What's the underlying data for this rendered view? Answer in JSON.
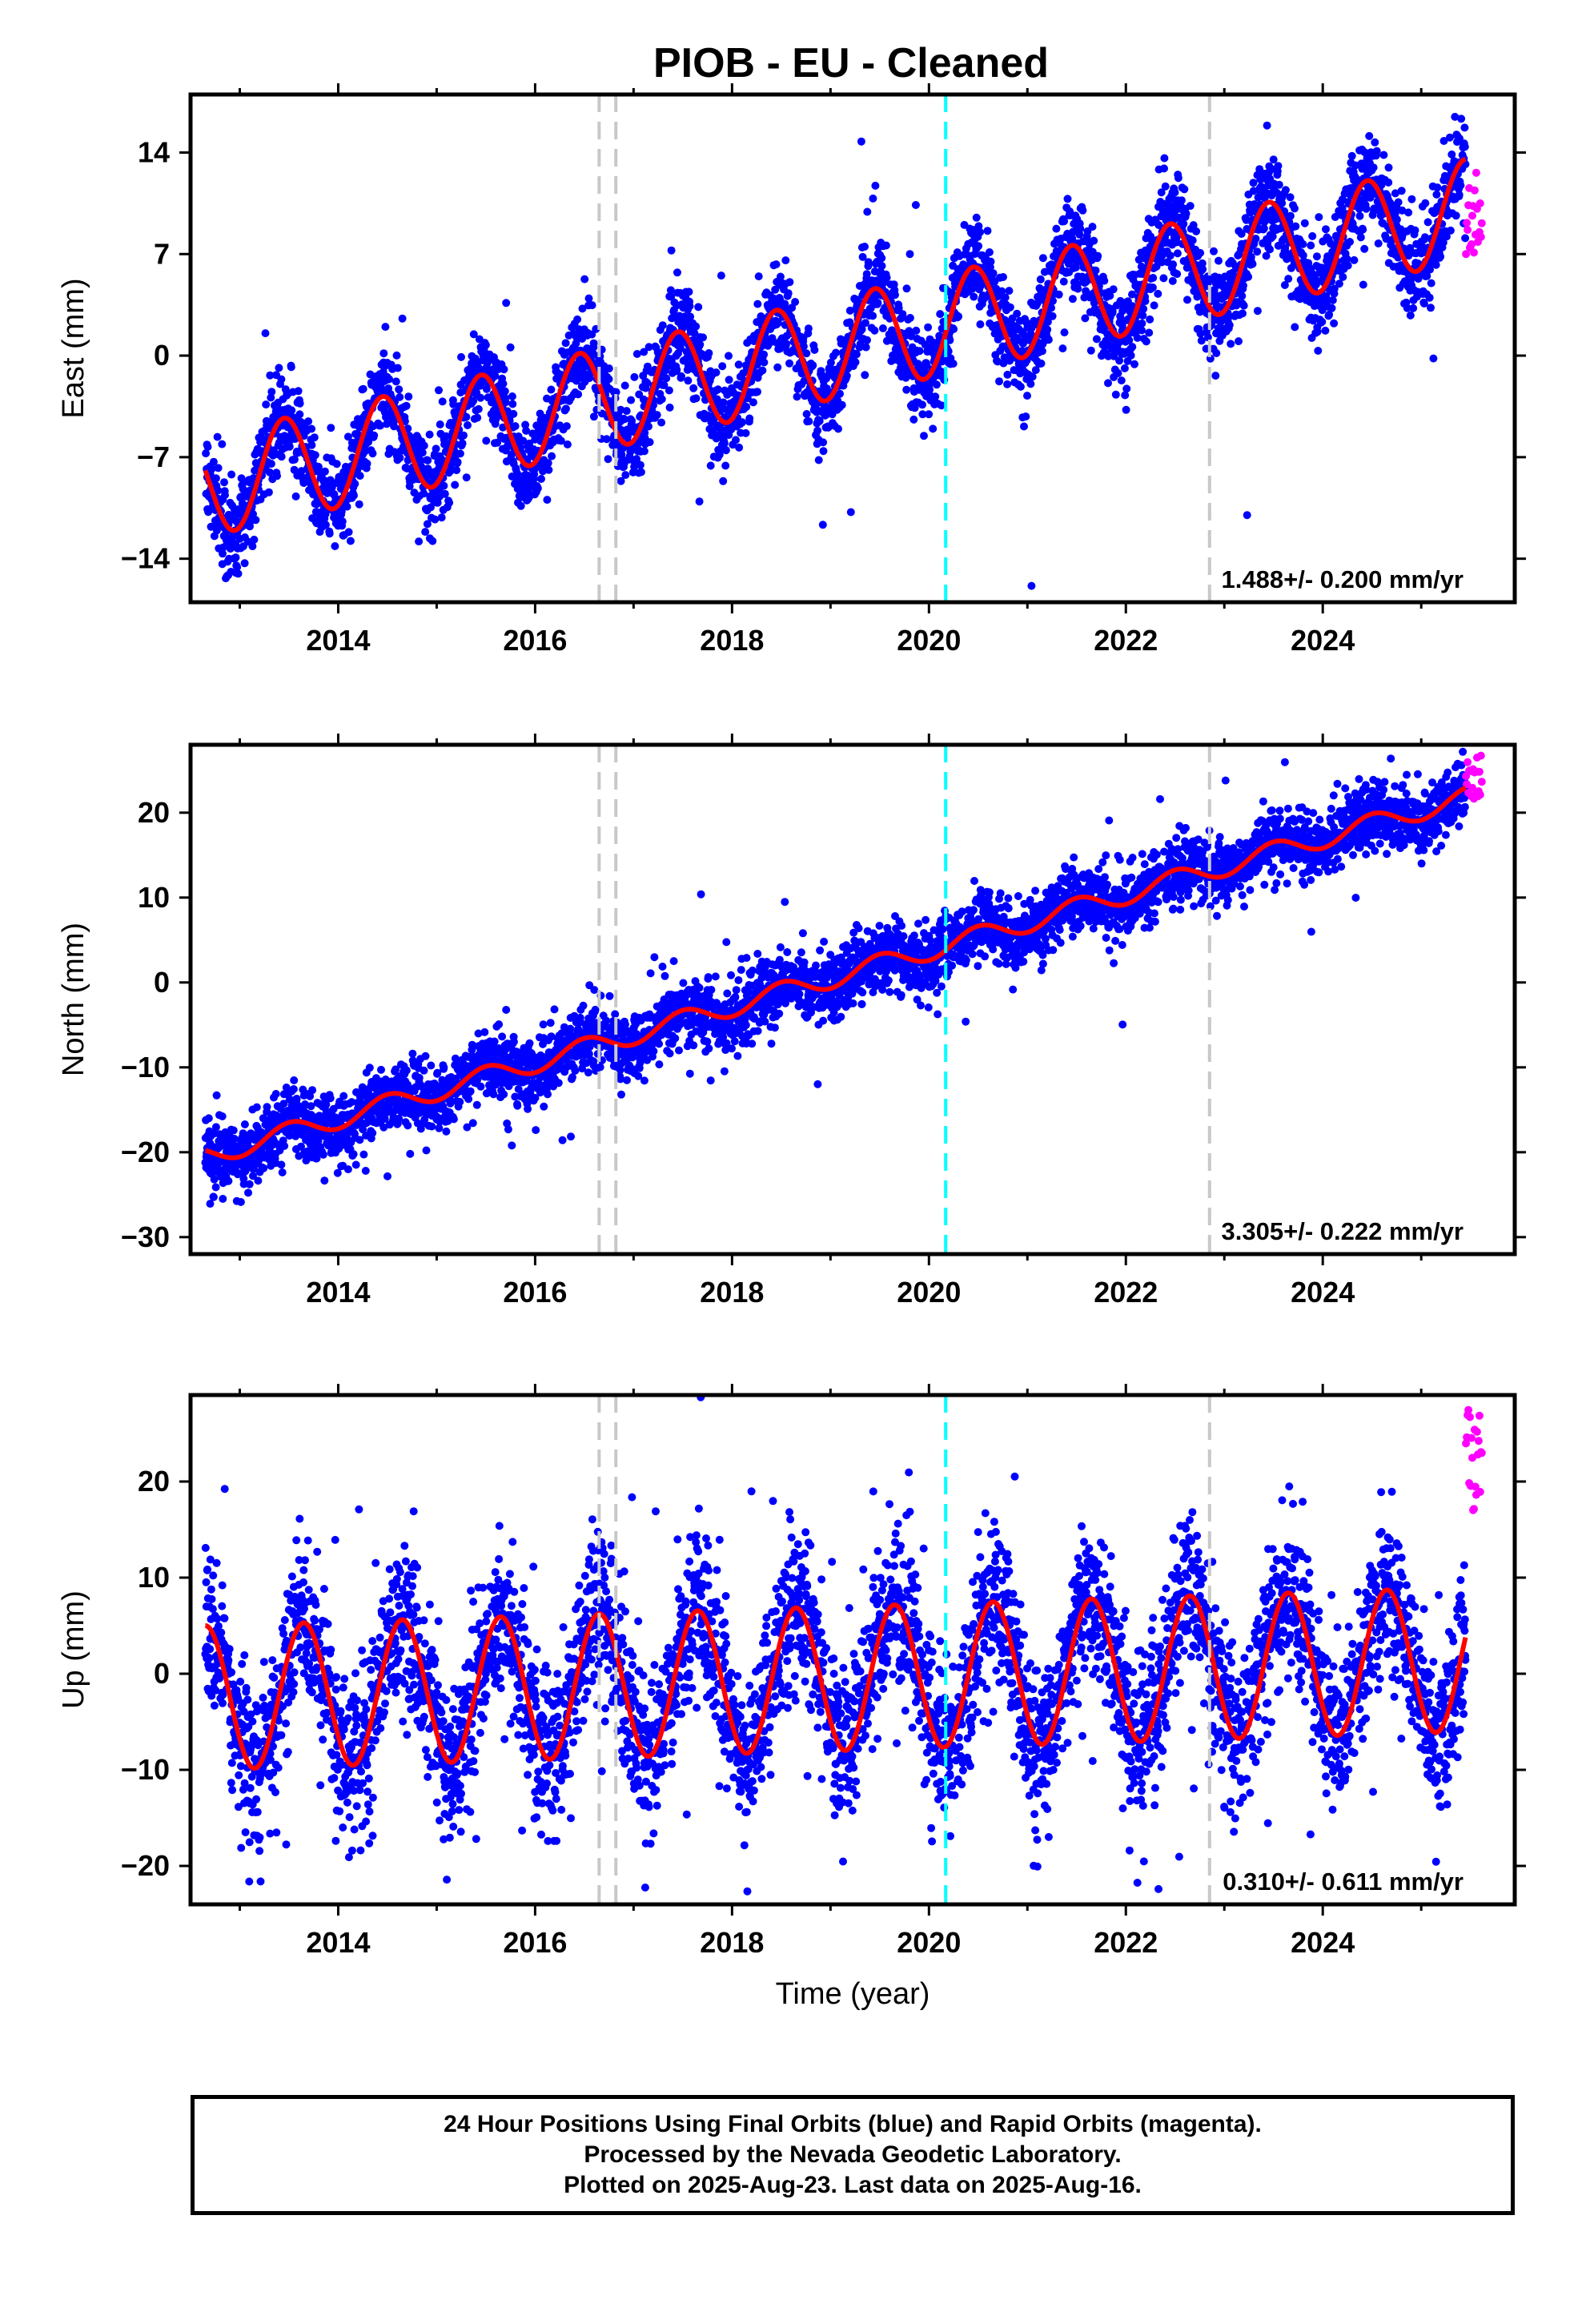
{
  "chart_data": [
    {
      "type": "scatter",
      "panel": "east",
      "title": "PIOB  - EU - Cleaned",
      "ylabel": "East (mm)",
      "xlabel": "",
      "xlim": [
        2012.5,
        2025.95
      ],
      "ylim": [
        -17,
        18
      ],
      "xticks": [
        2014,
        2016,
        2018,
        2020,
        2022,
        2024
      ],
      "yticks": [
        -14,
        -7,
        0,
        7,
        14
      ],
      "rate_text": "1.488+/- 0.200 mm/yr",
      "start": 2012.65,
      "end": 2025.45,
      "rapid_end": 2025.62,
      "fit": {
        "offset": -9.0,
        "rate": 1.488,
        "amplitude": 3.5,
        "phase_peak": 0.45
      },
      "scatter_noise": 1.6,
      "rapid_points_range": [
        7,
        13
      ],
      "series": [
        {
          "name": "Final Orbits",
          "color": "#0000ff"
        },
        {
          "name": "Rapid Orbits",
          "color": "#ff00ff"
        },
        {
          "name": "Model",
          "color": "#ff0000"
        }
      ],
      "vlines": [
        {
          "x": 2016.65,
          "color": "#c8c8c8"
        },
        {
          "x": 2016.82,
          "color": "#c8c8c8"
        },
        {
          "x": 2020.17,
          "color": "#00ffff"
        },
        {
          "x": 2022.85,
          "color": "#c8c8c8"
        }
      ]
    },
    {
      "type": "scatter",
      "panel": "north",
      "ylabel": "North (mm)",
      "xlabel": "",
      "xlim": [
        2012.5,
        2025.95
      ],
      "ylim": [
        -32,
        28
      ],
      "xticks": [
        2014,
        2016,
        2018,
        2020,
        2022,
        2024
      ],
      "yticks": [
        -30,
        -20,
        -10,
        0,
        10,
        20
      ],
      "rate_text": "3.305+/- 0.222 mm/yr",
      "start": 2012.65,
      "end": 2025.45,
      "rapid_end": 2025.62,
      "fit": {
        "offset": -20.5,
        "rate": 3.305,
        "amplitude": 1.2,
        "phase_peak": 0.5
      },
      "scatter_noise": 1.9,
      "rapid_points_range": [
        21,
        27
      ],
      "series": [
        {
          "name": "Final Orbits",
          "color": "#0000ff"
        },
        {
          "name": "Rapid Orbits",
          "color": "#ff00ff"
        },
        {
          "name": "Model",
          "color": "#ff0000"
        }
      ],
      "vlines": [
        {
          "x": 2016.65,
          "color": "#c8c8c8"
        },
        {
          "x": 2016.82,
          "color": "#c8c8c8"
        },
        {
          "x": 2020.17,
          "color": "#00ffff"
        },
        {
          "x": 2022.85,
          "color": "#c8c8c8"
        }
      ]
    },
    {
      "type": "scatter",
      "panel": "up",
      "ylabel": "Up (mm)",
      "xlabel": "Time (year)",
      "xlim": [
        2012.5,
        2025.95
      ],
      "ylim": [
        -24,
        29
      ],
      "xticks": [
        2014,
        2016,
        2018,
        2020,
        2022,
        2024
      ],
      "yticks": [
        -20,
        -10,
        0,
        10,
        20
      ],
      "rate_text": "0.310+/- 0.611 mm/yr",
      "start": 2012.65,
      "end": 2025.45,
      "rapid_end": 2025.62,
      "fit": {
        "offset": -2.5,
        "rate": 0.31,
        "amplitude": 7.5,
        "phase_peak": 0.65
      },
      "scatter_noise": 4.2,
      "rapid_points_range": [
        16,
        28
      ],
      "series": [
        {
          "name": "Final Orbits",
          "color": "#0000ff"
        },
        {
          "name": "Rapid Orbits",
          "color": "#ff00ff"
        },
        {
          "name": "Model",
          "color": "#ff0000"
        }
      ],
      "vlines": [
        {
          "x": 2016.65,
          "color": "#c8c8c8"
        },
        {
          "x": 2016.82,
          "color": "#c8c8c8"
        },
        {
          "x": 2020.17,
          "color": "#00ffff"
        },
        {
          "x": 2022.85,
          "color": "#c8c8c8"
        }
      ]
    }
  ],
  "footer": {
    "line1": "24 Hour Positions Using Final Orbits (blue) and Rapid Orbits (magenta).",
    "line2": "Processed by the Nevada Geodetic Laboratory.",
    "line3": "Plotted on 2025-Aug-23. Last data on 2025-Aug-16."
  }
}
